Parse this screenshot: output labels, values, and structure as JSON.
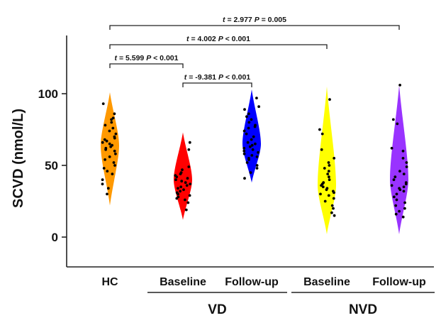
{
  "chart_data": {
    "type": "violin",
    "ylabel": "SCVD (nmol/L)",
    "ylim": [
      -20,
      125
    ],
    "yticks": [
      0,
      50,
      100
    ],
    "categories": [
      "HC",
      "Baseline",
      "Follow-up",
      "Baseline",
      "Follow-up"
    ],
    "groups": [
      {
        "label": "VD",
        "span": [
          1,
          2
        ]
      },
      {
        "label": "NVD",
        "span": [
          3,
          4
        ]
      }
    ],
    "series": [
      {
        "color": "#ff9900",
        "range": [
          22,
          101
        ],
        "mode": 64,
        "points": [
          93,
          86,
          83,
          82,
          80,
          78,
          76,
          74,
          72,
          70,
          69,
          68,
          67,
          66,
          65,
          64,
          63,
          62,
          61,
          60,
          58,
          56,
          54,
          52,
          50,
          48,
          46,
          44,
          40,
          37,
          34,
          30
        ]
      },
      {
        "color": "#ff0000",
        "range": [
          12,
          73
        ],
        "mode": 40,
        "points": [
          66,
          61,
          49,
          47,
          45,
          44,
          43,
          42,
          41,
          40,
          39,
          38,
          37,
          36,
          35,
          34,
          33,
          32,
          31,
          30,
          29,
          28,
          27,
          26,
          24,
          19
        ]
      },
      {
        "color": "#0000ff",
        "range": [
          38,
          103
        ],
        "mode": 65,
        "points": [
          97,
          91,
          89,
          86,
          84,
          82,
          80,
          78,
          77,
          76,
          74,
          72,
          70,
          68,
          66,
          65,
          64,
          63,
          62,
          61,
          60,
          59,
          58,
          57,
          56,
          55,
          54,
          52,
          50,
          48,
          45,
          41
        ]
      },
      {
        "color": "#ffff00",
        "range": [
          2,
          105
        ],
        "mode": 36,
        "points": [
          96,
          75,
          72,
          61,
          55,
          52,
          50,
          48,
          46,
          44,
          42,
          40,
          38,
          37,
          36,
          35,
          34,
          33,
          32,
          31,
          30,
          29,
          27,
          25,
          22,
          20,
          17,
          15
        ]
      },
      {
        "color": "#9933ff",
        "range": [
          2,
          106
        ],
        "mode": 40,
        "points": [
          106,
          82,
          79,
          62,
          60,
          55,
          52,
          49,
          46,
          44,
          42,
          40,
          38,
          37,
          36,
          35,
          34,
          33,
          32,
          30,
          28,
          26,
          24,
          22,
          20,
          18,
          16,
          14
        ]
      }
    ],
    "annotations": [
      {
        "from": 0,
        "to": 4,
        "t_label": "t",
        "t_value": " = 2.977",
        "p_label": "P",
        "p_value": " = 0.005"
      },
      {
        "from": 0,
        "to": 3,
        "t_label": "t",
        "t_value": " = 4.002",
        "p_label": "P",
        "p_value": " < 0.001"
      },
      {
        "from": 0,
        "to": 1,
        "t_label": "t",
        "t_value": " = 5.599",
        "p_label": "P",
        "p_value": " < 0.001"
      },
      {
        "from": 1,
        "to": 2,
        "t_label": "t",
        "t_value": " = -9.381",
        "p_label": "P",
        "p_value": " < 0.001"
      }
    ]
  }
}
